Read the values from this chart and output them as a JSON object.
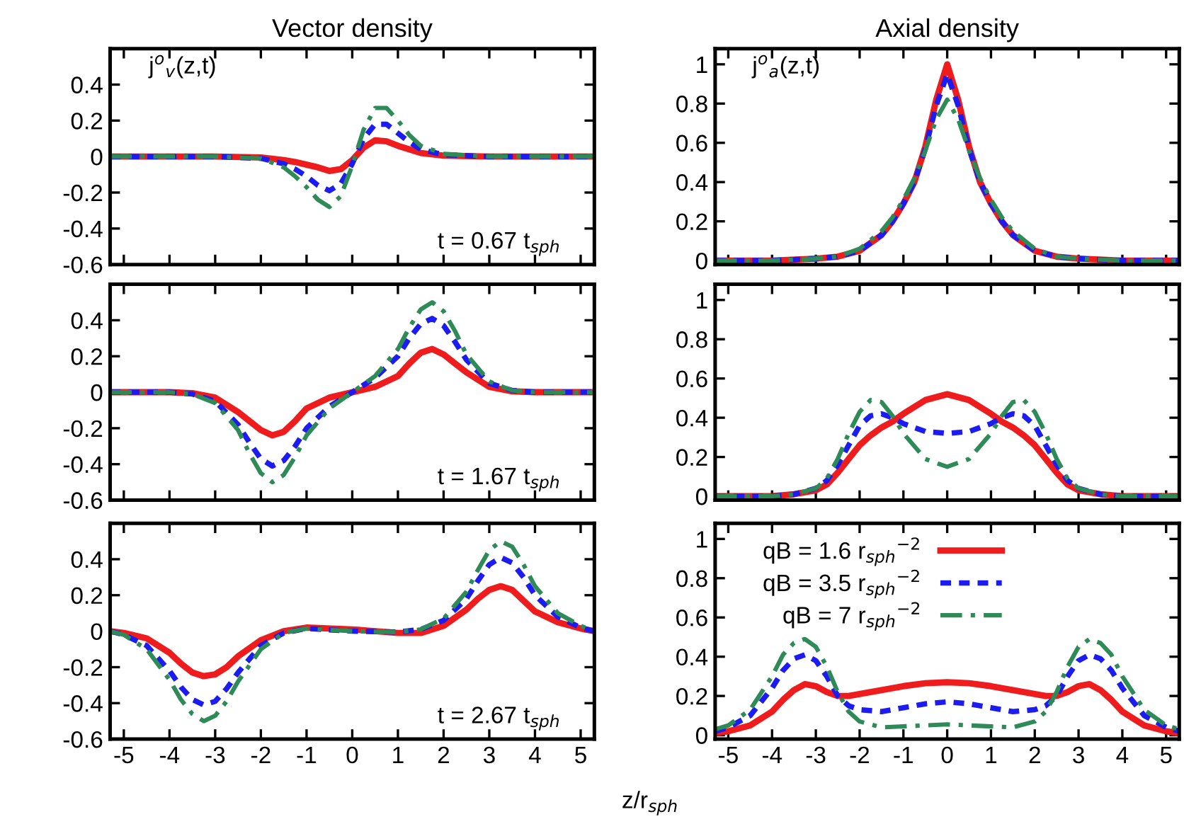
{
  "chart_data": [
    {
      "type": "line",
      "title": "Vector density",
      "ylabel": "j$^{o}$$_{v}$(z,t)",
      "annotations": [
        "t = 0.67 t$_{sph}$"
      ],
      "x": [
        -5.3,
        -3,
        -2,
        -1.5,
        -1.25,
        -1,
        -0.75,
        -0.5,
        -0.25,
        0,
        0.25,
        0.5,
        0.75,
        1,
        1.25,
        1.5,
        2,
        3,
        5.3
      ],
      "xlim": [
        -5.3,
        5.3
      ],
      "xticks": [
        -5,
        -4,
        -3,
        -2,
        -1,
        0,
        1,
        2,
        3,
        4,
        5
      ],
      "ylim": [
        -0.6,
        0.6
      ],
      "yticks": [
        -0.6,
        -0.4,
        -0.2,
        0,
        0.2,
        0.4
      ],
      "tick_labels": "y",
      "series": [
        {
          "color": "#ee1c1c",
          "line_style": "solid",
          "values": [
            0,
            0,
            -0.005,
            -0.02,
            -0.03,
            -0.045,
            -0.06,
            -0.08,
            -0.07,
            -0.02,
            0.05,
            0.09,
            0.085,
            0.06,
            0.04,
            0.02,
            0.005,
            0,
            0
          ]
        },
        {
          "color": "#1c1cf0",
          "line_style": "dotted",
          "values": [
            0,
            0,
            -0.01,
            -0.04,
            -0.07,
            -0.11,
            -0.16,
            -0.19,
            -0.15,
            -0.04,
            0.1,
            0.18,
            0.18,
            0.13,
            0.08,
            0.04,
            0.01,
            0,
            0
          ]
        },
        {
          "color": "#2e8b57",
          "line_style": "dashed",
          "values": [
            0,
            0,
            -0.01,
            -0.06,
            -0.11,
            -0.17,
            -0.24,
            -0.28,
            -0.22,
            -0.05,
            0.15,
            0.27,
            0.27,
            0.2,
            0.12,
            0.06,
            0.015,
            0,
            0
          ]
        }
      ]
    },
    {
      "type": "line",
      "title": "Axial density",
      "ylabel": "j$^{o}$$_{a}$(z,t)",
      "x": [
        -5.3,
        -4,
        -3,
        -2.5,
        -2,
        -1.5,
        -1.25,
        -1,
        -0.75,
        -0.5,
        -0.25,
        0,
        0.25,
        0.5,
        0.75,
        1,
        1.25,
        1.5,
        2,
        2.5,
        3,
        4,
        5.3
      ],
      "xlim": [
        -5.3,
        5.3
      ],
      "xticks": [
        -5,
        -4,
        -3,
        -2,
        -1,
        0,
        1,
        2,
        3,
        4,
        5
      ],
      "ylim": [
        -0.02,
        1.08
      ],
      "yticks": [
        0,
        0.2,
        0.4,
        0.6,
        0.8,
        1
      ],
      "tick_labels": "y",
      "series": [
        {
          "color": "#ee1c1c",
          "line_style": "solid",
          "values": [
            0,
            0,
            0.01,
            0.02,
            0.05,
            0.13,
            0.2,
            0.29,
            0.4,
            0.58,
            0.82,
            1.0,
            0.82,
            0.58,
            0.4,
            0.29,
            0.2,
            0.13,
            0.05,
            0.02,
            0.01,
            0,
            0
          ]
        },
        {
          "color": "#1c1cf0",
          "line_style": "dotted",
          "values": [
            0,
            0,
            0.01,
            0.02,
            0.05,
            0.13,
            0.2,
            0.29,
            0.4,
            0.57,
            0.79,
            0.95,
            0.79,
            0.57,
            0.4,
            0.29,
            0.2,
            0.13,
            0.05,
            0.02,
            0.01,
            0,
            0
          ]
        },
        {
          "color": "#2e8b57",
          "line_style": "dashed",
          "values": [
            0,
            0,
            0.01,
            0.02,
            0.06,
            0.15,
            0.22,
            0.31,
            0.42,
            0.56,
            0.72,
            0.82,
            0.72,
            0.56,
            0.42,
            0.31,
            0.22,
            0.15,
            0.06,
            0.02,
            0.01,
            0,
            0
          ]
        }
      ]
    },
    {
      "type": "line",
      "annotations": [
        "t = 1.67 t$_{sph}$"
      ],
      "x": [
        -5.3,
        -4,
        -3.5,
        -3,
        -2.5,
        -2.25,
        -2,
        -1.75,
        -1.5,
        -1.25,
        -1,
        -0.5,
        0,
        0.5,
        1,
        1.25,
        1.5,
        1.75,
        2,
        2.25,
        2.5,
        3,
        3.5,
        4,
        5.3
      ],
      "xlim": [
        -5.3,
        5.3
      ],
      "xticks": [
        -5,
        -4,
        -3,
        -2,
        -1,
        0,
        1,
        2,
        3,
        4,
        5
      ],
      "ylim": [
        -0.6,
        0.6
      ],
      "yticks": [
        -0.6,
        -0.4,
        -0.2,
        0,
        0.2,
        0.4
      ],
      "tick_labels": "y",
      "series": [
        {
          "color": "#ee1c1c",
          "line_style": "solid",
          "values": [
            0,
            0,
            -0.005,
            -0.03,
            -0.11,
            -0.16,
            -0.21,
            -0.24,
            -0.22,
            -0.16,
            -0.09,
            -0.03,
            0,
            0.03,
            0.09,
            0.16,
            0.22,
            0.24,
            0.21,
            0.16,
            0.11,
            0.03,
            0.005,
            0,
            0
          ]
        },
        {
          "color": "#1c1cf0",
          "line_style": "dotted",
          "values": [
            0,
            0,
            -0.01,
            -0.05,
            -0.18,
            -0.28,
            -0.37,
            -0.41,
            -0.38,
            -0.3,
            -0.2,
            -0.08,
            0,
            0.08,
            0.2,
            0.3,
            0.38,
            0.41,
            0.37,
            0.28,
            0.18,
            0.05,
            0.01,
            0,
            0
          ]
        },
        {
          "color": "#2e8b57",
          "line_style": "dashed",
          "values": [
            0,
            0,
            -0.01,
            -0.06,
            -0.21,
            -0.34,
            -0.45,
            -0.5,
            -0.46,
            -0.36,
            -0.24,
            -0.09,
            0,
            0.09,
            0.24,
            0.36,
            0.46,
            0.5,
            0.45,
            0.34,
            0.21,
            0.06,
            0.01,
            0,
            0
          ]
        }
      ]
    },
    {
      "type": "line",
      "x": [
        -5.3,
        -4,
        -3.5,
        -3,
        -2.75,
        -2.5,
        -2.25,
        -2,
        -1.75,
        -1.5,
        -1.25,
        -1,
        -0.5,
        0,
        0.5,
        1,
        1.25,
        1.5,
        1.75,
        2,
        2.25,
        2.5,
        2.75,
        3,
        3.5,
        4,
        5.3
      ],
      "xlim": [
        -5.3,
        5.3
      ],
      "xticks": [
        -5,
        -4,
        -3,
        -2,
        -1,
        0,
        1,
        2,
        3,
        4,
        5
      ],
      "ylim": [
        -0.02,
        1.08
      ],
      "yticks": [
        0,
        0.2,
        0.4,
        0.6,
        0.8,
        1
      ],
      "tick_labels": "y",
      "series": [
        {
          "color": "#ee1c1c",
          "line_style": "solid",
          "values": [
            0,
            0,
            0.01,
            0.03,
            0.06,
            0.12,
            0.19,
            0.26,
            0.31,
            0.35,
            0.38,
            0.42,
            0.49,
            0.52,
            0.49,
            0.42,
            0.38,
            0.35,
            0.31,
            0.26,
            0.19,
            0.12,
            0.06,
            0.03,
            0.01,
            0,
            0
          ]
        },
        {
          "color": "#1c1cf0",
          "line_style": "dotted",
          "values": [
            0,
            0,
            0.01,
            0.04,
            0.08,
            0.16,
            0.26,
            0.36,
            0.41,
            0.42,
            0.4,
            0.37,
            0.33,
            0.32,
            0.33,
            0.37,
            0.4,
            0.42,
            0.41,
            0.36,
            0.26,
            0.16,
            0.08,
            0.04,
            0.01,
            0,
            0
          ]
        },
        {
          "color": "#2e8b57",
          "line_style": "dashed",
          "values": [
            0,
            0,
            0.01,
            0.04,
            0.09,
            0.19,
            0.32,
            0.43,
            0.49,
            0.48,
            0.41,
            0.32,
            0.19,
            0.15,
            0.19,
            0.32,
            0.41,
            0.48,
            0.49,
            0.43,
            0.32,
            0.19,
            0.09,
            0.04,
            0.01,
            0,
            0
          ]
        }
      ]
    },
    {
      "type": "line",
      "annotations": [
        "t = 2.67 t$_{sph}$"
      ],
      "x": [
        -5.3,
        -5,
        -4.5,
        -4,
        -3.75,
        -3.5,
        -3.25,
        -3,
        -2.75,
        -2.5,
        -2,
        -1.5,
        -1,
        0,
        1,
        1.5,
        2,
        2.5,
        2.75,
        3,
        3.25,
        3.5,
        3.75,
        4,
        4.5,
        5,
        5.3
      ],
      "xlim": [
        -5.3,
        5.3
      ],
      "xticks": [
        -5,
        -4,
        -3,
        -2,
        -1,
        0,
        1,
        2,
        3,
        4,
        5
      ],
      "ylim": [
        -0.6,
        0.6
      ],
      "yticks": [
        -0.6,
        -0.4,
        -0.2,
        0,
        0.2,
        0.4
      ],
      "series": [
        {
          "color": "#ee1c1c",
          "line_style": "solid",
          "values": [
            0,
            -0.01,
            -0.04,
            -0.12,
            -0.18,
            -0.23,
            -0.25,
            -0.24,
            -0.2,
            -0.14,
            -0.05,
            0,
            0.02,
            0.01,
            -0.01,
            -0.01,
            0.03,
            0.12,
            0.18,
            0.23,
            0.25,
            0.23,
            0.17,
            0.11,
            0.05,
            0.015,
            0
          ]
        },
        {
          "color": "#1c1cf0",
          "line_style": "dotted",
          "values": [
            0,
            -0.02,
            -0.08,
            -0.22,
            -0.31,
            -0.38,
            -0.41,
            -0.39,
            -0.32,
            -0.23,
            -0.08,
            -0.01,
            0.015,
            0,
            -0.005,
            0.01,
            0.06,
            0.18,
            0.28,
            0.37,
            0.41,
            0.38,
            0.3,
            0.2,
            0.08,
            0.02,
            0
          ]
        },
        {
          "color": "#2e8b57",
          "line_style": "dashed",
          "values": [
            0,
            -0.02,
            -0.1,
            -0.27,
            -0.38,
            -0.46,
            -0.5,
            -0.47,
            -0.39,
            -0.28,
            -0.1,
            -0.01,
            0.015,
            0,
            -0.005,
            0.01,
            0.07,
            0.22,
            0.34,
            0.45,
            0.5,
            0.47,
            0.37,
            0.25,
            0.1,
            0.03,
            0
          ]
        }
      ]
    },
    {
      "type": "line",
      "xlabel": "z/r$_{sph}$",
      "legend": "top",
      "x": [
        -5.3,
        -5,
        -4.5,
        -4,
        -3.75,
        -3.5,
        -3.25,
        -3,
        -2.75,
        -2.5,
        -2.25,
        -2,
        -1.5,
        -1,
        -0.5,
        0,
        0.5,
        1,
        1.5,
        2,
        2.25,
        2.5,
        2.75,
        3,
        3.25,
        3.5,
        3.75,
        4,
        4.5,
        5,
        5.3
      ],
      "xlim": [
        -5.3,
        5.3
      ],
      "xticks": [
        -5,
        -4,
        -3,
        -2,
        -1,
        0,
        1,
        2,
        3,
        4,
        5
      ],
      "ylim": [
        -0.02,
        1.08
      ],
      "yticks": [
        0,
        0.2,
        0.4,
        0.6,
        0.8,
        1
      ],
      "series": [
        {
          "name": "qB = 1.6 r$_{sph}$$^{−2}$",
          "color": "#ee1c1c",
          "line_style": "solid",
          "values": [
            0.01,
            0.02,
            0.05,
            0.12,
            0.18,
            0.23,
            0.26,
            0.25,
            0.22,
            0.2,
            0.2,
            0.21,
            0.23,
            0.25,
            0.265,
            0.27,
            0.265,
            0.25,
            0.23,
            0.21,
            0.2,
            0.2,
            0.22,
            0.25,
            0.26,
            0.23,
            0.18,
            0.12,
            0.05,
            0.02,
            0.01
          ]
        },
        {
          "name": "qB = 3.5 r$_{sph}$$^{−2}$",
          "color": "#1c1cf0",
          "line_style": "dotted",
          "values": [
            0.02,
            0.04,
            0.1,
            0.24,
            0.33,
            0.39,
            0.41,
            0.38,
            0.3,
            0.2,
            0.15,
            0.13,
            0.12,
            0.14,
            0.16,
            0.17,
            0.16,
            0.14,
            0.12,
            0.13,
            0.15,
            0.2,
            0.3,
            0.38,
            0.41,
            0.39,
            0.33,
            0.24,
            0.1,
            0.04,
            0.02
          ]
        },
        {
          "name": "qB = 7 r$_{sph}$$^{−2}$",
          "color": "#2e8b57",
          "line_style": "dashed",
          "values": [
            0.03,
            0.05,
            0.13,
            0.3,
            0.41,
            0.47,
            0.49,
            0.45,
            0.35,
            0.22,
            0.12,
            0.07,
            0.04,
            0.045,
            0.05,
            0.055,
            0.05,
            0.045,
            0.04,
            0.07,
            0.12,
            0.22,
            0.35,
            0.45,
            0.49,
            0.47,
            0.41,
            0.3,
            0.13,
            0.05,
            0.03
          ]
        }
      ]
    }
  ]
}
